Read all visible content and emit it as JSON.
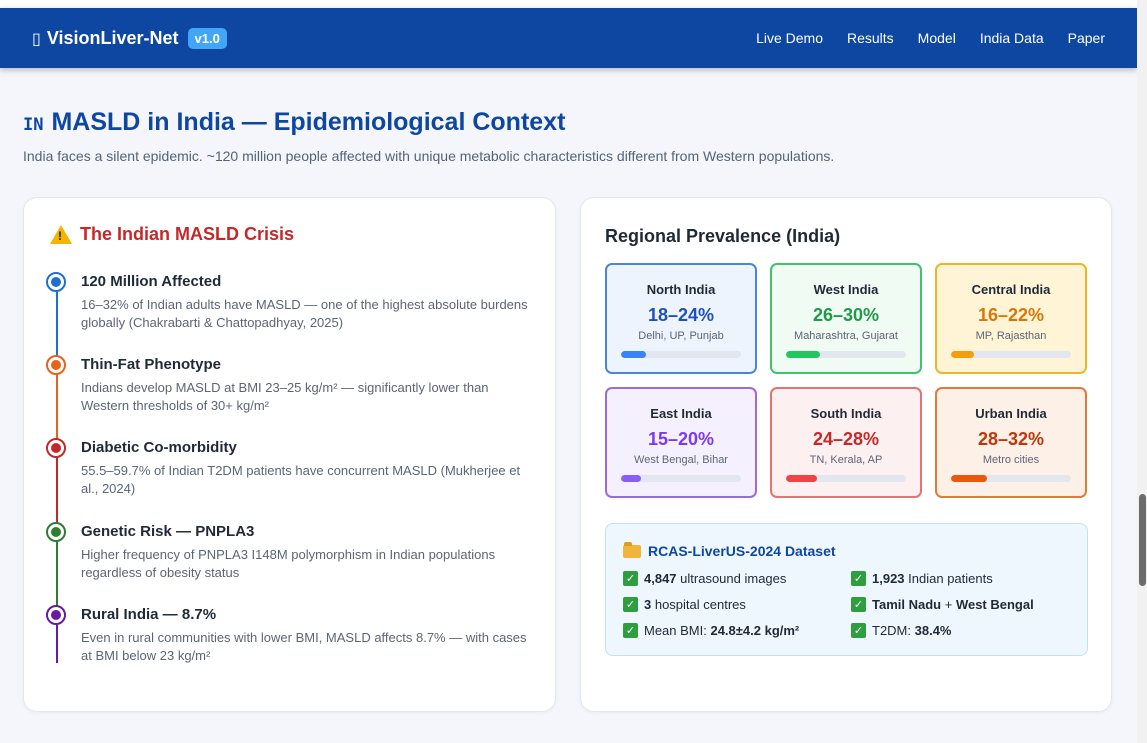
{
  "app": {
    "brand": "VisionLiver-Net",
    "brand_icon": "liver-icon",
    "version": "v1.0"
  },
  "nav": [
    "Live Demo",
    "Results",
    "Model",
    "India Data",
    "Paper"
  ],
  "section": {
    "flag_text": "IN",
    "title": "MASLD in India — Epidemiological Context",
    "subtitle": "India faces a silent epidemic. ~120 million people affected with unique metabolic characteristics different from Western populations."
  },
  "crisis": {
    "title": "The Indian MASLD Crisis",
    "items": [
      {
        "title": "120 Million Affected",
        "desc": "16–32% of Indian adults have MASLD — one of the highest absolute burdens globally (Chakrabarti & Chattopadhyay, 2025)",
        "color": "#1e6fd0"
      },
      {
        "title": "Thin-Fat Phenotype",
        "desc": "Indians develop MASLD at BMI 23–25 kg/m² — significantly lower than Western thresholds of 30+ kg/m²",
        "color": "#e8621a"
      },
      {
        "title": "Diabetic Co-morbidity",
        "desc": "55.5–59.7% of Indian T2DM patients have concurrent MASLD (Mukherjee et al., 2024)",
        "color": "#c62828"
      },
      {
        "title": "Genetic Risk — PNPLA3",
        "desc": "Higher frequency of PNPLA3 I148M polymorphism in Indian populations regardless of obesity status",
        "color": "#2e7d32"
      },
      {
        "title": "Rural India — 8.7%",
        "desc": "Even in rural communities with lower BMI, MASLD affects 8.7% — with cases at BMI below 23 kg/m²",
        "color": "#6a1b9a"
      }
    ]
  },
  "regional": {
    "title": "Regional Prevalence (India)",
    "regions": [
      {
        "name": "North India",
        "value": "18–24%",
        "sub": "Delhi, UP, Punjab",
        "fill": 0.21,
        "color": "#1e4fbf",
        "border": "#4a86d8",
        "bg": "#eef4fd",
        "bar": "#3b82f6"
      },
      {
        "name": "West India",
        "value": "26–30%",
        "sub": "Maharashtra, Gujarat",
        "fill": 0.28,
        "color": "#1f9a48",
        "border": "#3fc36d",
        "bg": "#effbf3",
        "bar": "#22c55e"
      },
      {
        "name": "Central India",
        "value": "16–22%",
        "sub": "MP, Rajasthan",
        "fill": 0.19,
        "color": "#d97706",
        "border": "#f0b429",
        "bg": "#fff5d6",
        "bar": "#f59e0b"
      },
      {
        "name": "East India",
        "value": "15–20%",
        "sub": "West Bengal, Bihar",
        "fill": 0.17,
        "color": "#7c3aed",
        "border": "#9b6bd8",
        "bg": "#f5f0fd",
        "bar": "#8b5cf6"
      },
      {
        "name": "South India",
        "value": "24–28%",
        "sub": "TN, Kerala, AP",
        "fill": 0.26,
        "color": "#c62828",
        "border": "#e57373",
        "bg": "#fdf0f0",
        "bar": "#ef4444"
      },
      {
        "name": "Urban India",
        "value": "28–32%",
        "sub": "Metro cities",
        "fill": 0.3,
        "color": "#bf360c",
        "border": "#e07b39",
        "bg": "#fdf0e6",
        "bar": "#ea580c"
      }
    ]
  },
  "dataset": {
    "title": "RCAS-LiverUS-2024 Dataset",
    "items": [
      {
        "bold": "4,847",
        "rest": " ultrasound images"
      },
      {
        "bold": "1,923",
        "rest": " Indian patients"
      },
      {
        "bold": "3",
        "rest": " hospital centres"
      },
      {
        "bold": "Tamil Nadu",
        "mid": " + ",
        "bold2": "West Bengal"
      },
      {
        "pre": "Mean BMI: ",
        "bold": "24.8±4.2 kg/m²"
      },
      {
        "pre": "T2DM: ",
        "bold": "38.4%"
      }
    ]
  }
}
